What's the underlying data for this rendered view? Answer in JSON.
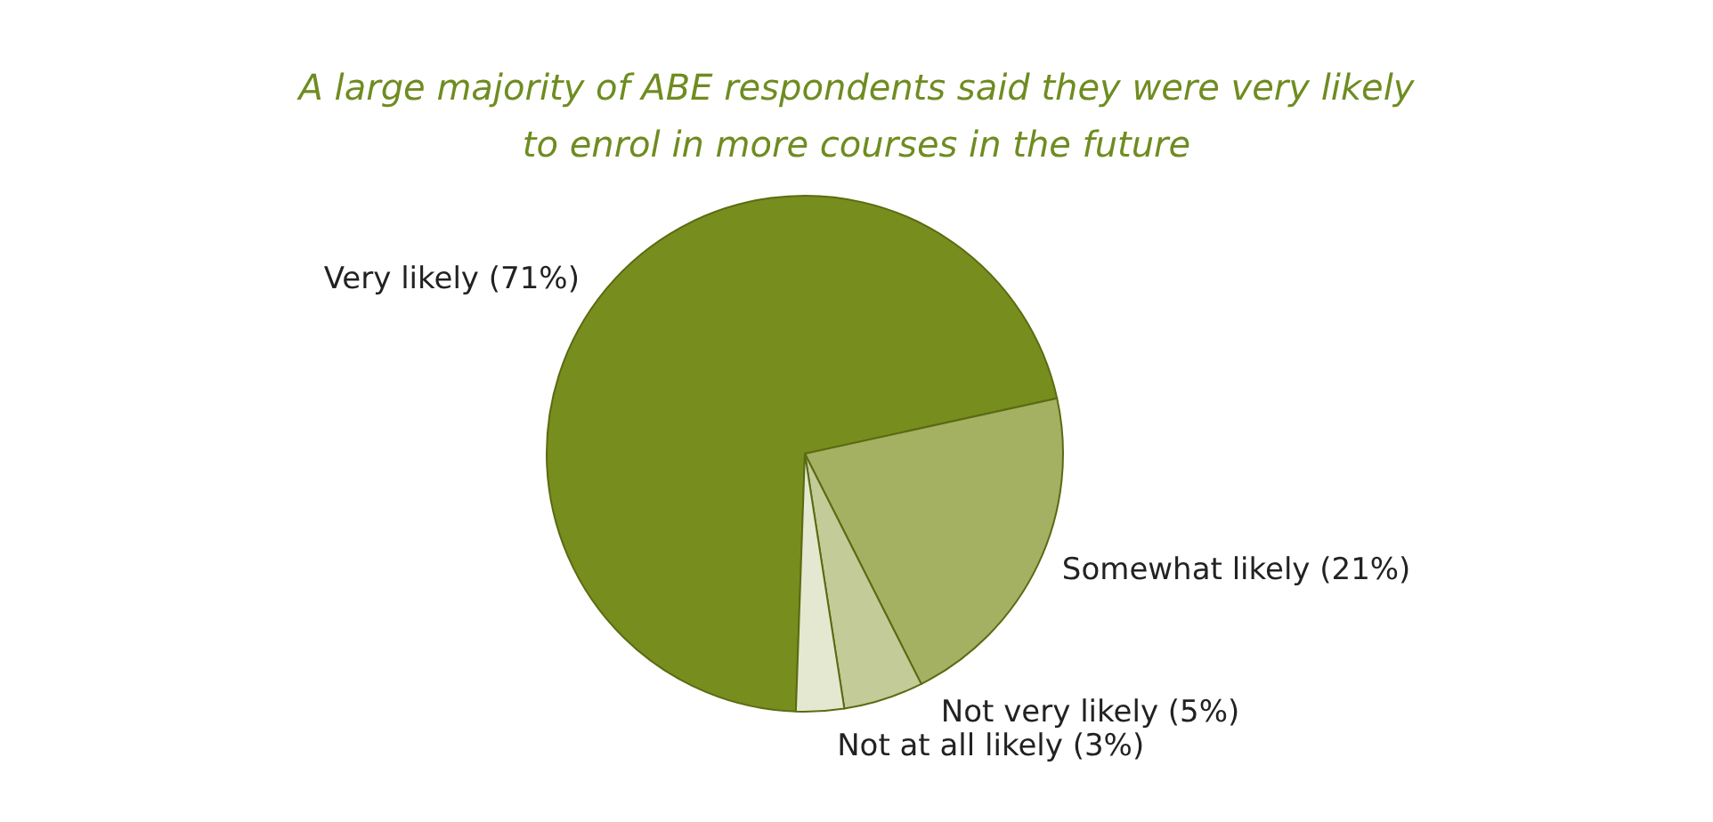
{
  "chart_data": {
    "type": "pie",
    "title": "A large majority of ABE respondents said they were very likely\nto enrol in more courses in the future",
    "categories": [
      "Very likely (71%)",
      "Somewhat likely (21%)",
      "Not very likely (5%)",
      "Not at all likely (3%)"
    ],
    "values": [
      71,
      21,
      5,
      3
    ],
    "colors": [
      "#778d1e",
      "#a4b163",
      "#c3cb98",
      "#e4e8d0"
    ],
    "legend": false
  }
}
